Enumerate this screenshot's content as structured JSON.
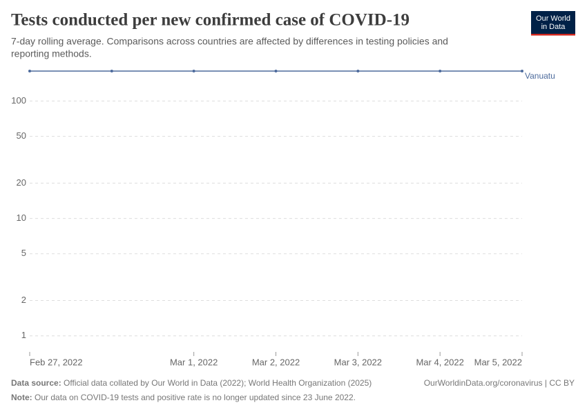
{
  "title": "Tests conducted per new confirmed case of COVID-19",
  "subtitle": [
    "7-day rolling average. Comparisons across countries are affected by differences in testing policies and",
    "reporting methods."
  ],
  "logo": [
    "Our World",
    "in Data"
  ],
  "chart_data": {
    "type": "line",
    "x": [
      "2022-02-27",
      "2022-02-28",
      "2022-03-01",
      "2022-03-02",
      "2022-03-03",
      "2022-03-04",
      "2022-03-05"
    ],
    "xlim": [
      "2022-02-27",
      "2022-03-05"
    ],
    "xticks": [
      {
        "value": "2022-02-27",
        "label": "Feb 27, 2022"
      },
      {
        "value": "2022-03-01",
        "label": "Mar 1, 2022"
      },
      {
        "value": "2022-03-02",
        "label": "Mar 2, 2022"
      },
      {
        "value": "2022-03-03",
        "label": "Mar 3, 2022"
      },
      {
        "value": "2022-03-04",
        "label": "Mar 4, 2022"
      },
      {
        "value": "2022-03-05",
        "label": "Mar 5, 2022"
      }
    ],
    "series": [
      {
        "name": "Vanuatu",
        "color": "#4c6a9c",
        "values": [
          180,
          180,
          180,
          180,
          180,
          180,
          180
        ]
      }
    ],
    "ylim": [
      0.75,
      180
    ],
    "yticks": [
      1,
      2,
      5,
      10,
      20,
      50,
      100
    ],
    "log_y": true,
    "grid": true
  },
  "footer": {
    "source_label": "Data source:",
    "source": "Official data collated by Our World in Data (2022); World Health Organization (2025)",
    "link": "OurWorldinData.org/coronavirus | CC BY",
    "note_label": "Note:",
    "note": "Our data on COVID-19 tests and positive rate is no longer updated since 23 June 2022."
  }
}
